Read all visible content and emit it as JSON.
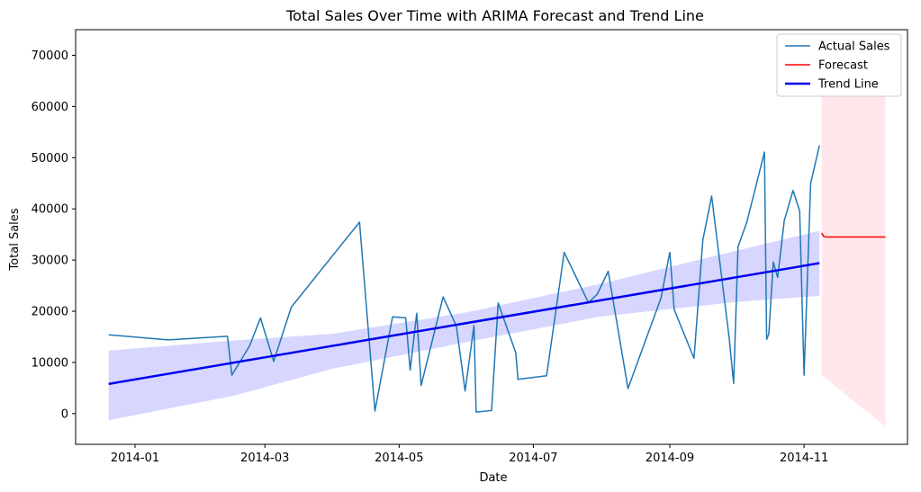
{
  "chart_data": {
    "type": "line",
    "title": "Total Sales Over Time with ARIMA Forecast and Trend Line",
    "xlabel": "Date",
    "ylabel": "Total Sales",
    "xlim": [
      "2013-12-05",
      "2014-12-18"
    ],
    "ylim": [
      -6000,
      75000
    ],
    "x_ticks": [
      {
        "date": "2014-01-01",
        "label": "2014-01"
      },
      {
        "date": "2014-03-01",
        "label": "2014-03"
      },
      {
        "date": "2014-05-01",
        "label": "2014-05"
      },
      {
        "date": "2014-07-01",
        "label": "2014-07"
      },
      {
        "date": "2014-09-01",
        "label": "2014-09"
      },
      {
        "date": "2014-11-01",
        "label": "2014-11"
      }
    ],
    "y_ticks": [
      0,
      10000,
      20000,
      30000,
      40000,
      50000,
      60000,
      70000
    ],
    "grid": false,
    "legend_position": "top-right",
    "series": [
      {
        "name": "Actual Sales",
        "color": "#1f77b4",
        "points": [
          [
            "2013-12-20",
            15400
          ],
          [
            "2014-01-16",
            14400
          ],
          [
            "2014-02-12",
            15100
          ],
          [
            "2014-02-14",
            7500
          ],
          [
            "2014-02-22",
            13200
          ],
          [
            "2014-02-27",
            18700
          ],
          [
            "2014-03-05",
            10200
          ],
          [
            "2014-03-13",
            20800
          ],
          [
            "2014-04-13",
            37400
          ],
          [
            "2014-04-20",
            500
          ],
          [
            "2014-04-28",
            18900
          ],
          [
            "2014-05-04",
            18700
          ],
          [
            "2014-05-06",
            8500
          ],
          [
            "2014-05-09",
            19600
          ],
          [
            "2014-05-11",
            5500
          ],
          [
            "2014-05-21",
            22800
          ],
          [
            "2014-05-27",
            17100
          ],
          [
            "2014-05-31",
            4400
          ],
          [
            "2014-06-04",
            17200
          ],
          [
            "2014-06-05",
            300
          ],
          [
            "2014-06-12",
            600
          ],
          [
            "2014-06-15",
            21600
          ],
          [
            "2014-06-23",
            11900
          ],
          [
            "2014-06-24",
            6700
          ],
          [
            "2014-07-07",
            7400
          ],
          [
            "2014-07-15",
            31500
          ],
          [
            "2014-07-26",
            21700
          ],
          [
            "2014-07-30",
            23300
          ],
          [
            "2014-08-04",
            27800
          ],
          [
            "2014-08-13",
            4900
          ],
          [
            "2014-08-28",
            22600
          ],
          [
            "2014-09-01",
            31500
          ],
          [
            "2014-09-03",
            20300
          ],
          [
            "2014-09-12",
            10800
          ],
          [
            "2014-09-16",
            33900
          ],
          [
            "2014-09-20",
            42500
          ],
          [
            "2014-09-28",
            14700
          ],
          [
            "2014-09-30",
            5900
          ],
          [
            "2014-10-02",
            32600
          ],
          [
            "2014-10-06",
            37400
          ],
          [
            "2014-10-14",
            51100
          ],
          [
            "2014-10-15",
            14500
          ],
          [
            "2014-10-16",
            15600
          ],
          [
            "2014-10-18",
            29600
          ],
          [
            "2014-10-20",
            26600
          ],
          [
            "2014-10-23",
            37700
          ],
          [
            "2014-10-27",
            43600
          ],
          [
            "2014-10-30",
            39600
          ],
          [
            "2014-11-01",
            7500
          ],
          [
            "2014-11-04",
            45000
          ],
          [
            "2014-11-08",
            52400
          ]
        ]
      },
      {
        "name": "Forecast",
        "color": "#ff0000",
        "points": [
          [
            "2014-11-09",
            35300
          ],
          [
            "2014-11-10",
            34600
          ],
          [
            "2014-11-11",
            34500
          ],
          [
            "2014-12-08",
            34500
          ]
        ],
        "ci_color": "#ffc0cb",
        "ci_lower": [
          [
            "2014-11-09",
            7500
          ],
          [
            "2014-12-08",
            -2500
          ]
        ],
        "ci_upper": [
          [
            "2014-11-09",
            62000
          ],
          [
            "2014-12-08",
            62000
          ]
        ]
      },
      {
        "name": "Trend Line",
        "color": "#0000ee",
        "points": [
          [
            "2013-12-20",
            5800
          ],
          [
            "2014-11-08",
            29400
          ]
        ],
        "ci_color": "#0000ff",
        "ci_lower": [
          [
            "2013-12-20",
            -1300
          ],
          [
            "2014-02-15",
            3500
          ],
          [
            "2014-04-01",
            8800
          ],
          [
            "2014-06-01",
            14000
          ],
          [
            "2014-08-01",
            19000
          ],
          [
            "2014-10-01",
            21800
          ],
          [
            "2014-11-08",
            23000
          ]
        ],
        "ci_upper": [
          [
            "2013-12-20",
            12300
          ],
          [
            "2014-02-15",
            14300
          ],
          [
            "2014-04-01",
            15600
          ],
          [
            "2014-06-01",
            19800
          ],
          [
            "2014-08-01",
            25400
          ],
          [
            "2014-10-01",
            31800
          ],
          [
            "2014-11-08",
            35700
          ]
        ]
      }
    ]
  }
}
